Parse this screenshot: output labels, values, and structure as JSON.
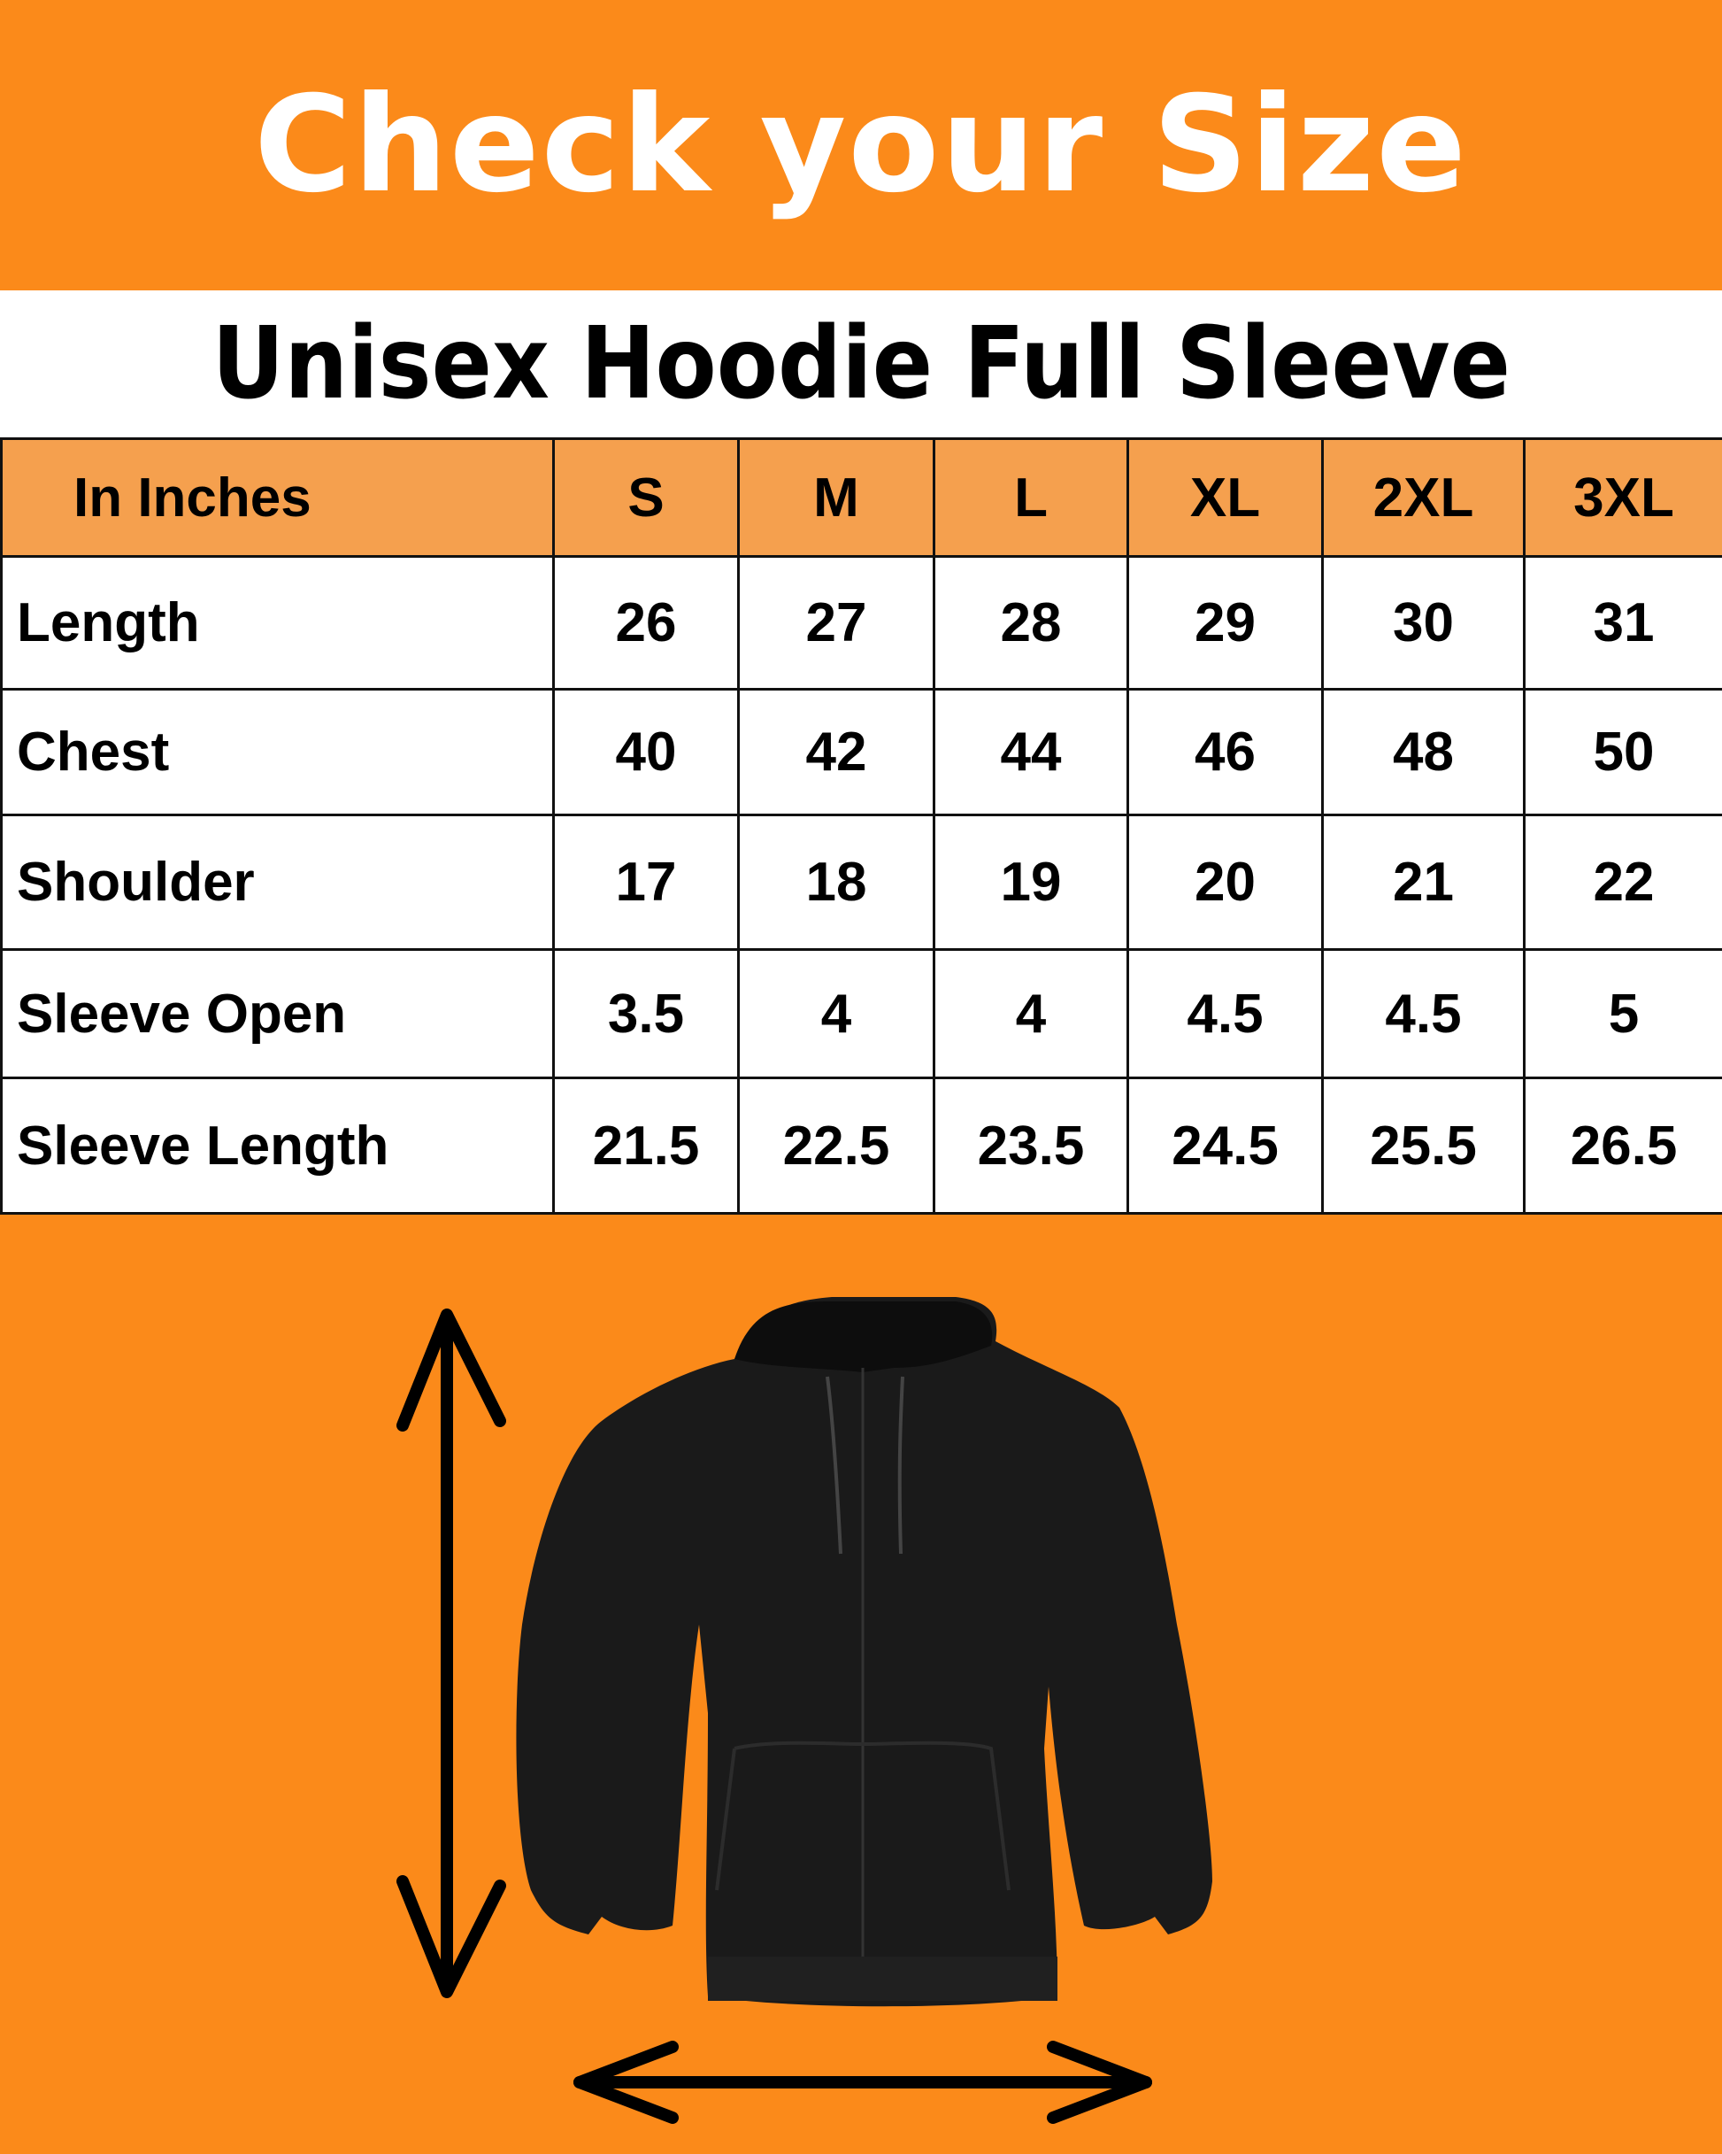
{
  "header": {
    "title": "Check your Size"
  },
  "product": {
    "title": "Unisex Hoodie Full Sleeve"
  },
  "colors": {
    "brand_orange": "#FB8A1A",
    "header_orange": "#F5A04E"
  },
  "size_table": {
    "columns": [
      "In Inches",
      "S",
      "M",
      "L",
      "XL",
      "2XL",
      "3XL"
    ],
    "rows": [
      {
        "label": "Length",
        "values": [
          "26",
          "27",
          "28",
          "29",
          "30",
          "31"
        ]
      },
      {
        "label": "Chest",
        "values": [
          "40",
          "42",
          "44",
          "46",
          "48",
          "50"
        ]
      },
      {
        "label": "Shoulder",
        "values": [
          "17",
          "18",
          "19",
          "20",
          "21",
          "22"
        ]
      },
      {
        "label": "Sleeve Open",
        "values": [
          "3.5",
          "4",
          "4",
          "4.5",
          "4.5",
          "5"
        ]
      },
      {
        "label": "Sleeve Length",
        "values": [
          "21.5",
          "22.5",
          "23.5",
          "24.5",
          "25.5",
          "26.5"
        ]
      }
    ]
  },
  "illustration": {
    "icons": [
      "black-zip-hoodie",
      "vertical-double-arrow",
      "horizontal-double-arrow"
    ]
  }
}
